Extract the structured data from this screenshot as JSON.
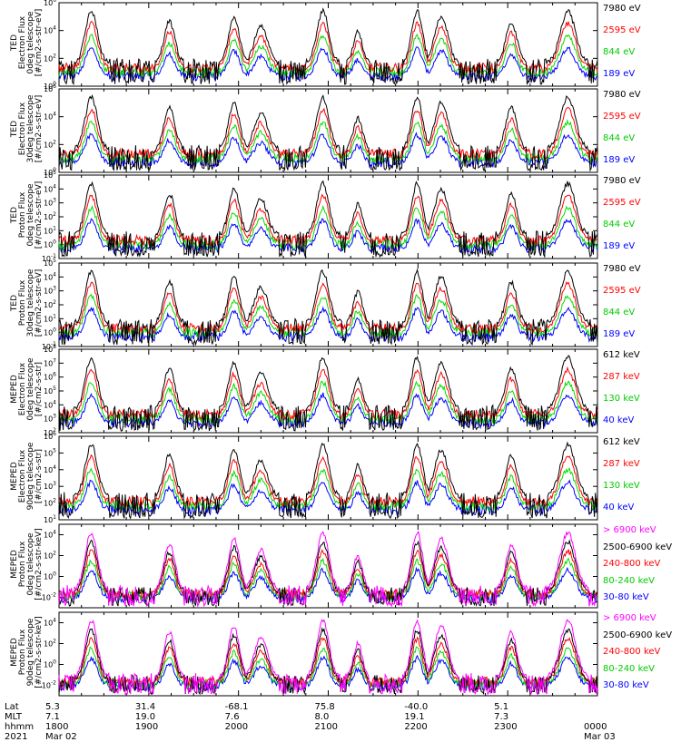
{
  "chart_data": [
    {
      "type": "line",
      "panel": 1,
      "instrument": "TED",
      "ylabel": [
        "TED",
        "Electron Flux",
        "0deg telescope",
        "[#/cm2-s-str-eV]"
      ],
      "yticks": [
        "10^6",
        "10^4",
        "10^2",
        "10^0"
      ],
      "ylim_log10": [
        0,
        6
      ],
      "series": [
        {
          "name": "7980 eV",
          "color": "#000000"
        },
        {
          "name": "2595 eV",
          "color": "#ff0000"
        },
        {
          "name": "844 eV",
          "color": "#00dd00"
        },
        {
          "name": "189 eV",
          "color": "#0000ff"
        }
      ]
    },
    {
      "type": "line",
      "panel": 2,
      "instrument": "TED",
      "ylabel": [
        "TED",
        "Electron Flux",
        "30deg telescope",
        "[#/cm2-s-str-eV]"
      ],
      "yticks": [
        "10^6",
        "10^4",
        "10^2",
        "10^0"
      ],
      "ylim_log10": [
        0,
        6
      ],
      "series": [
        {
          "name": "7980 eV",
          "color": "#000000"
        },
        {
          "name": "2595 eV",
          "color": "#ff0000"
        },
        {
          "name": "844 eV",
          "color": "#00dd00"
        },
        {
          "name": "189 eV",
          "color": "#0000ff"
        }
      ]
    },
    {
      "type": "line",
      "panel": 3,
      "instrument": "TED",
      "ylabel": [
        "TED",
        "Proton Flux",
        "0deg telescope",
        "[#/cm2-s-str-eV]"
      ],
      "yticks": [
        "10^5",
        "10^4",
        "10^3",
        "10^2",
        "10^1",
        "10^0",
        "10^-1"
      ],
      "ylim_log10": [
        -1,
        5
      ],
      "series": [
        {
          "name": "7980 eV",
          "color": "#000000"
        },
        {
          "name": "2595 eV",
          "color": "#ff0000"
        },
        {
          "name": "844 eV",
          "color": "#00dd00"
        },
        {
          "name": "189 eV",
          "color": "#0000ff"
        }
      ]
    },
    {
      "type": "line",
      "panel": 4,
      "instrument": "TED",
      "ylabel": [
        "TED",
        "Proton Flux",
        "30deg telescope",
        "[#/cm2-s-str-eV]"
      ],
      "yticks": [
        "10^5",
        "10^4",
        "10^3",
        "10^2",
        "10^1",
        "10^0",
        "10^-1"
      ],
      "ylim_log10": [
        -1,
        5
      ],
      "series": [
        {
          "name": "7980 eV",
          "color": "#000000"
        },
        {
          "name": "2595 eV",
          "color": "#ff0000"
        },
        {
          "name": "844 eV",
          "color": "#00dd00"
        },
        {
          "name": "189 eV",
          "color": "#0000ff"
        }
      ]
    },
    {
      "type": "line",
      "panel": 5,
      "instrument": "MEPED",
      "ylabel": [
        "MEPED",
        "Electron Flux",
        "0deg telescope",
        "[#/cm2-s-str]"
      ],
      "yticks": [
        "10^8",
        "10^7",
        "10^6",
        "10^5",
        "10^4",
        "10^3",
        "10^2"
      ],
      "ylim_log10": [
        2,
        8
      ],
      "series": [
        {
          "name": "612 keV",
          "color": "#000000"
        },
        {
          "name": "287 keV",
          "color": "#ff0000"
        },
        {
          "name": "130 keV",
          "color": "#00dd00"
        },
        {
          "name": "40 keV",
          "color": "#0000ff"
        }
      ]
    },
    {
      "type": "line",
      "panel": 6,
      "instrument": "MEPED",
      "ylabel": [
        "MEPED",
        "Electron Flux",
        "90deg telescope",
        "[#/cm2-s-str]"
      ],
      "yticks": [
        "10^6",
        "10^5",
        "10^4",
        "10^3",
        "10^2",
        "10^1"
      ],
      "ylim_log10": [
        1,
        6
      ],
      "series": [
        {
          "name": "612 keV",
          "color": "#000000"
        },
        {
          "name": "287 keV",
          "color": "#ff0000"
        },
        {
          "name": "130 keV",
          "color": "#00dd00"
        },
        {
          "name": "40 keV",
          "color": "#0000ff"
        }
      ]
    },
    {
      "type": "line",
      "panel": 7,
      "instrument": "MEPED",
      "ylabel": [
        "MEPED",
        "Proton Flux",
        "0deg telescope",
        "[#/cm2-s-str-keV]"
      ],
      "yticks": [
        "10^4",
        "10^2",
        "10^0",
        "10^-2"
      ],
      "ylim_log10": [
        -3,
        5
      ],
      "series": [
        {
          "name": "> 6900 keV",
          "color": "#ff00ff"
        },
        {
          "name": "2500-6900 keV",
          "color": "#000000"
        },
        {
          "name": "240-800 keV",
          "color": "#ff0000"
        },
        {
          "name": "80-240 keV",
          "color": "#00dd00"
        },
        {
          "name": "30-80 keV",
          "color": "#0000ff"
        }
      ]
    },
    {
      "type": "line",
      "panel": 8,
      "instrument": "MEPED",
      "ylabel": [
        "MEPED",
        "Proton Flux",
        "90deg telescope",
        "[#/cm2-s-str-keV]"
      ],
      "yticks": [
        "10^4",
        "10^2",
        "10^0",
        "10^-2"
      ],
      "ylim_log10": [
        -3,
        5
      ],
      "series": [
        {
          "name": "> 6900 keV",
          "color": "#ff00ff"
        },
        {
          "name": "2500-6900 keV",
          "color": "#000000"
        },
        {
          "name": "240-800 keV",
          "color": "#ff0000"
        },
        {
          "name": "80-240 keV",
          "color": "#00dd00"
        },
        {
          "name": "30-80 keV",
          "color": "#0000ff"
        }
      ]
    }
  ],
  "passes": [
    {
      "center": 0.06,
      "width": 0.02,
      "scale": 1.0
    },
    {
      "center": 0.205,
      "width": 0.018,
      "scale": 0.8
    },
    {
      "center": 0.325,
      "width": 0.018,
      "scale": 0.9
    },
    {
      "center": 0.375,
      "width": 0.022,
      "scale": 0.7
    },
    {
      "center": 0.49,
      "width": 0.02,
      "scale": 1.0
    },
    {
      "center": 0.555,
      "width": 0.015,
      "scale": 0.6
    },
    {
      "center": 0.665,
      "width": 0.018,
      "scale": 1.0
    },
    {
      "center": 0.71,
      "width": 0.022,
      "scale": 0.9
    },
    {
      "center": 0.84,
      "width": 0.018,
      "scale": 0.8
    },
    {
      "center": 0.945,
      "width": 0.025,
      "scale": 1.0
    }
  ],
  "xaxis": {
    "row_labels": [
      "Lat",
      "MLT",
      "hhmm",
      "2021"
    ],
    "ticks": [
      {
        "lat": "5.3",
        "mlt": "7.1",
        "hhmm": "1800",
        "date": "Mar 02"
      },
      {
        "lat": "31.4",
        "mlt": "19.0",
        "hhmm": "1900",
        "date": ""
      },
      {
        "lat": "-68.1",
        "mlt": "7.6",
        "hhmm": "2000",
        "date": ""
      },
      {
        "lat": "75.8",
        "mlt": "8.0",
        "hhmm": "2100",
        "date": ""
      },
      {
        "lat": "-40.0",
        "mlt": "19.1",
        "hhmm": "2200",
        "date": ""
      },
      {
        "lat": "5.1",
        "mlt": "7.3",
        "hhmm": "2300",
        "date": ""
      },
      {
        "lat": "",
        "mlt": "",
        "hhmm": "0000",
        "date": "Mar 03"
      }
    ]
  }
}
